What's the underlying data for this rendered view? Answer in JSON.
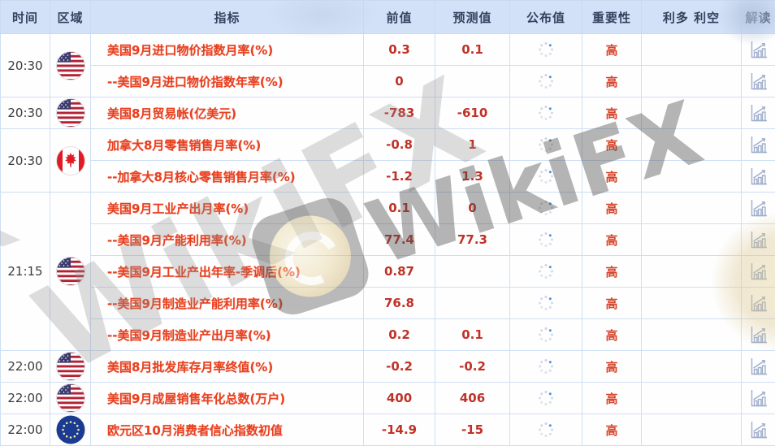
{
  "table": {
    "columns": [
      "时间",
      "区域",
      "指标",
      "前值",
      "预测值",
      "公布值",
      "重要性",
      "利多 利空",
      "解读"
    ],
    "importance_label": "高",
    "groups": [
      {
        "time": "20:30",
        "flag": "us-flag-icon",
        "rows": [
          {
            "indicator": "美国9月进口物价指数月率(%)",
            "previous": "0.3",
            "forecast": "0.1",
            "published": "",
            "importance": "高"
          },
          {
            "indicator": "--美国9月进口物价指数年率(%)",
            "previous": "0",
            "forecast": "",
            "published": "",
            "importance": "高"
          }
        ]
      },
      {
        "time": "20:30",
        "flag": "us-flag-icon",
        "rows": [
          {
            "indicator": "美国8月贸易帐(亿美元)",
            "previous": "-783",
            "forecast": "-610",
            "published": "",
            "importance": "高"
          }
        ]
      },
      {
        "time": "20:30",
        "flag": "ca-flag-icon",
        "rows": [
          {
            "indicator": "加拿大8月零售销售月率(%)",
            "previous": "-0.8",
            "forecast": "1",
            "published": "",
            "importance": "高"
          },
          {
            "indicator": "--加拿大8月核心零售销售月率(%)",
            "previous": "-1.2",
            "forecast": "1.3",
            "published": "",
            "importance": "高"
          }
        ]
      },
      {
        "time": "21:15",
        "flag": "us-flag-icon",
        "rows": [
          {
            "indicator": "美国9月工业产出月率(%)",
            "previous": "0.1",
            "forecast": "0",
            "published": "",
            "importance": "高"
          },
          {
            "indicator": "--美国9月产能利用率(%)",
            "previous": "77.4",
            "forecast": "77.3",
            "published": "",
            "importance": "高"
          },
          {
            "indicator": "--美国9月工业产出年率-季调后(%)",
            "previous": "0.87",
            "forecast": "",
            "published": "",
            "importance": "高"
          },
          {
            "indicator": "--美国9月制造业产能利用率(%)",
            "previous": "76.8",
            "forecast": "",
            "published": "",
            "importance": "高"
          },
          {
            "indicator": "--美国9月制造业产出月率(%)",
            "previous": "0.2",
            "forecast": "0.1",
            "published": "",
            "importance": "高"
          }
        ]
      },
      {
        "time": "22:00",
        "flag": "us-flag-icon",
        "rows": [
          {
            "indicator": "美国8月批发库存月率终值(%)",
            "previous": "-0.2",
            "forecast": "-0.2",
            "published": "",
            "importance": "高"
          }
        ]
      },
      {
        "time": "22:00",
        "flag": "us-flag-icon",
        "rows": [
          {
            "indicator": "美国9月成屋销售年化总数(万户)",
            "previous": "400",
            "forecast": "406",
            "published": "",
            "importance": "高"
          }
        ]
      },
      {
        "time": "22:00",
        "flag": "eu-flag-icon",
        "rows": [
          {
            "indicator": "欧元区10月消费者信心指数初值",
            "previous": "-14.9",
            "forecast": "-15",
            "published": "",
            "importance": "高"
          }
        ]
      }
    ]
  },
  "watermark": {
    "text": "WikiFX",
    "partial_letter": "K"
  },
  "icons": {
    "published_pending": "loading-spinner-icon",
    "interpretation": "chart-icon"
  },
  "colors": {
    "header_bg": "#d3e1f8",
    "header_text": "#35425f",
    "grid_line": "#cfdff2",
    "indicator_text": "#e8401f",
    "value_text": "#c03127",
    "importance_text": "#d7432a",
    "spinner_accent": "#4a90d9",
    "chart_icon": "#9fadcb"
  }
}
